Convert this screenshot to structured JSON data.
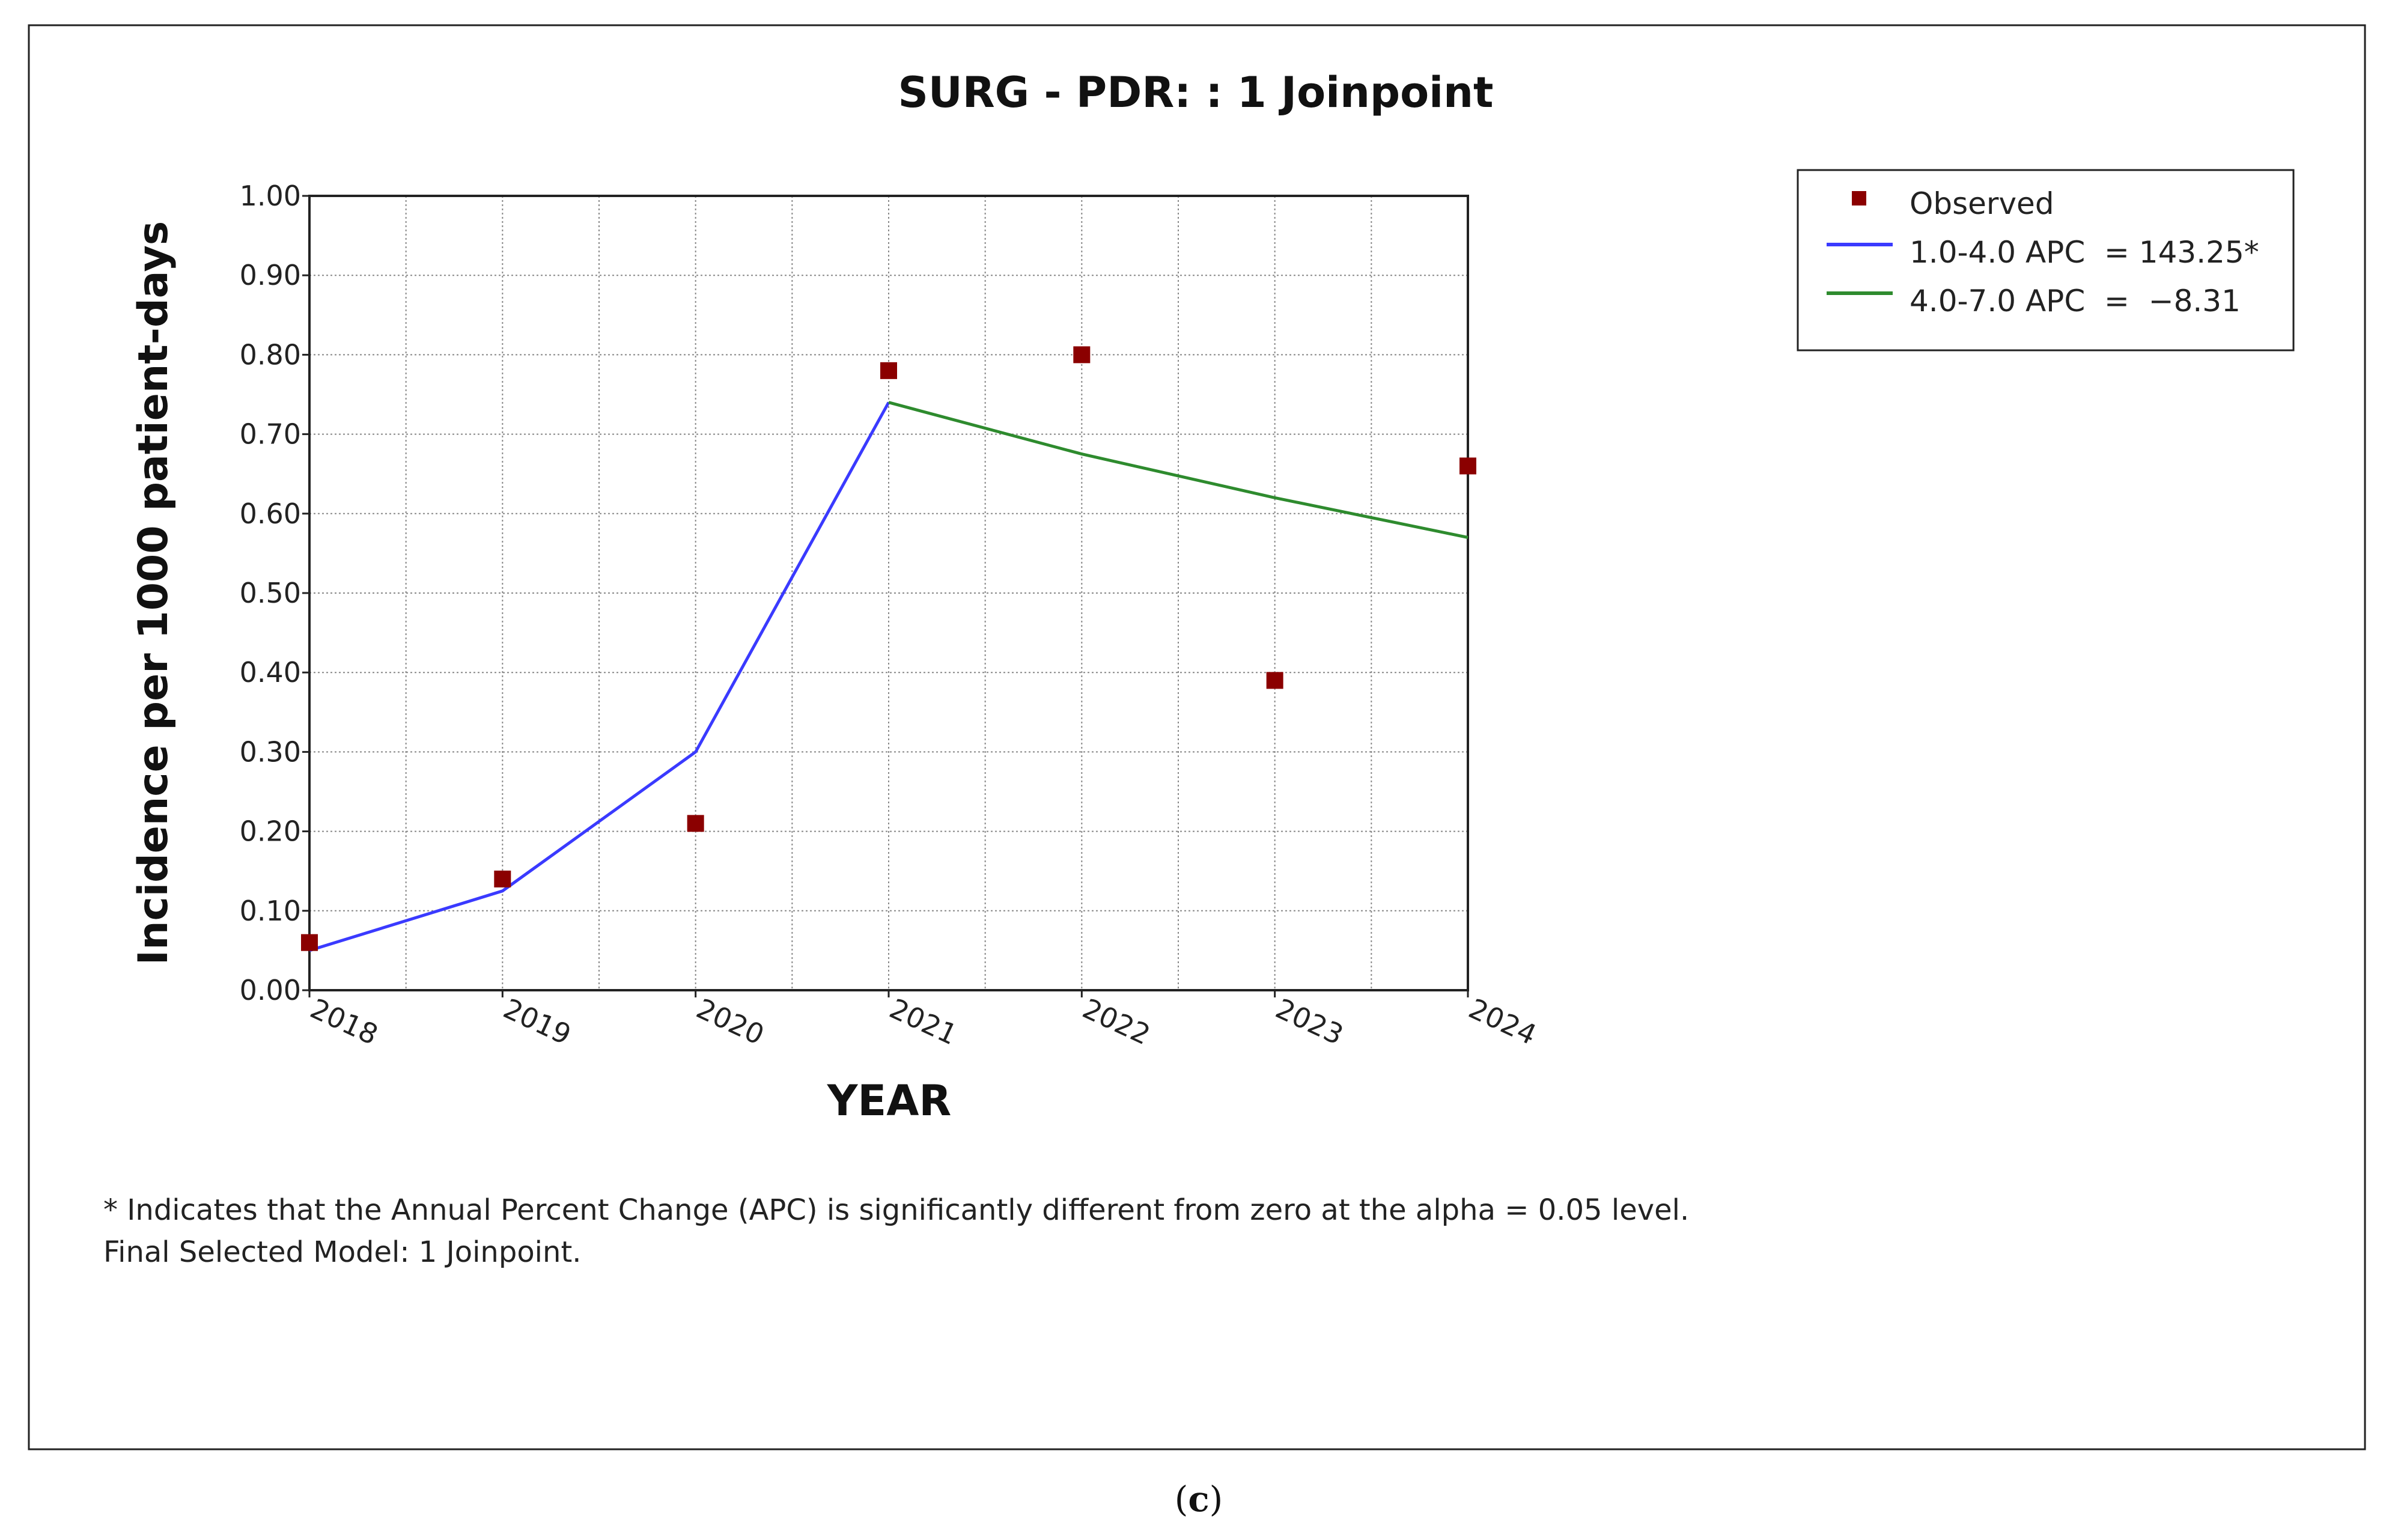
{
  "chart_data": {
    "type": "line",
    "title": "SURG - PDR: : 1 Joinpoint",
    "xlabel": "YEAR",
    "ylabel": "Incidence per 1000 patient-days",
    "categories": [
      "2018",
      "2019",
      "2020",
      "2021",
      "2022",
      "2023",
      "2024"
    ],
    "ylim": [
      0,
      1.0
    ],
    "yticks": [
      "0.00",
      "0.10",
      "0.20",
      "0.30",
      "0.40",
      "0.50",
      "0.60",
      "0.70",
      "0.80",
      "0.90",
      "1.00"
    ],
    "grid": true,
    "legend_position": "top-right",
    "observed": {
      "name": "Observed",
      "color": "#8b0000",
      "x": [
        1,
        2,
        3,
        4,
        5,
        6,
        7
      ],
      "y": [
        0.06,
        0.14,
        0.21,
        0.78,
        0.8,
        0.39,
        0.66
      ]
    },
    "series": [
      {
        "name": "1.0-4.0 APC  = 143.25*",
        "color": "#3a3aff",
        "x": [
          1,
          2,
          3,
          4
        ],
        "y": [
          0.05,
          0.125,
          0.3,
          0.74
        ]
      },
      {
        "name": "4.0-7.0 APC  =  −8.31",
        "color": "#2e8b2e",
        "x": [
          4,
          5,
          6,
          7
        ],
        "y": [
          0.74,
          0.675,
          0.62,
          0.57
        ]
      }
    ]
  },
  "footnote": {
    "line1": "* Indicates that the Annual Percent Change (APC) is significantly different from zero at the alpha = 0.05 level.",
    "line2": "Final Selected Model: 1 Joinpoint."
  },
  "caption": {
    "open": "(",
    "letter": "c",
    "close": ")"
  }
}
